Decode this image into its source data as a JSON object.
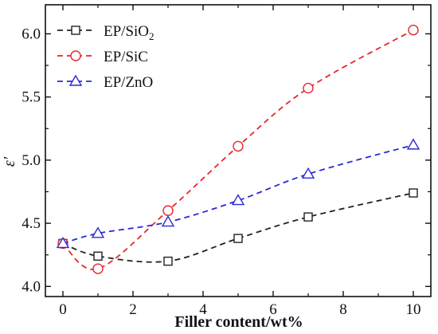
{
  "chart_data": {
    "type": "line",
    "xlabel": "Filler content/wt%",
    "ylabel": "ε′",
    "xlim": [
      -0.5,
      10.5
    ],
    "ylim": [
      3.92,
      6.23
    ],
    "x_ticks": [
      "0",
      "2",
      "4",
      "6",
      "8",
      "10"
    ],
    "y_ticks": [
      "4.0",
      "4.5",
      "5.0",
      "5.5",
      "6.0"
    ],
    "grid": false,
    "legend_position": "top-left",
    "series": [
      {
        "name": "EP/SiO",
        "name_subscript": "2",
        "marker": "square",
        "color": "#222222",
        "x": [
          0,
          1,
          3,
          5,
          7,
          10
        ],
        "y": [
          4.34,
          4.24,
          4.2,
          4.38,
          4.55,
          4.74
        ]
      },
      {
        "name": "EP/SiC",
        "marker": "circle",
        "color": "#e8262a",
        "x": [
          0,
          1,
          3,
          5,
          7,
          10
        ],
        "y": [
          4.34,
          4.14,
          4.6,
          5.11,
          5.57,
          6.03
        ]
      },
      {
        "name": "EP/ZnO",
        "marker": "triangle",
        "color": "#2a2ad4",
        "x": [
          0,
          1,
          3,
          5,
          7,
          10
        ],
        "y": [
          4.34,
          4.42,
          4.51,
          4.68,
          4.89,
          5.12
        ]
      }
    ]
  }
}
